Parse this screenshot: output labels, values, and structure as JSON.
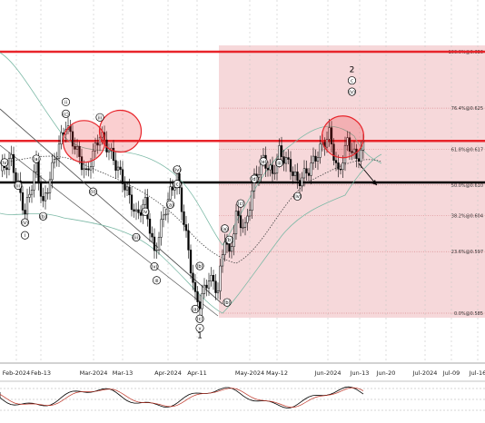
{
  "chart_data": {
    "type": "candlestick",
    "grid": true,
    "x_axis_labels": [
      "Feb-2024",
      "Feb-13",
      "Mar-2024",
      "Mar-13",
      "Apr-2024",
      "Apr-11",
      "May-2024",
      "May-12",
      "Jun-2024",
      "Jun-13",
      "Jun-20",
      "Jul-2024",
      "Jul-09",
      "Jul-16"
    ],
    "fib_levels": [
      {
        "label": "100.0%@0.636",
        "price": 0.636
      },
      {
        "label": "76.4%@0.625",
        "price": 0.625
      },
      {
        "label": "61.8%@0.617",
        "price": 0.617
      },
      {
        "label": "50.0%@0.610",
        "price": 0.61
      },
      {
        "label": "38.2%@0.604",
        "price": 0.604
      },
      {
        "label": "23.6%@0.597",
        "price": 0.597
      },
      {
        "label": "0.0%@0.585",
        "price": 0.585
      }
    ],
    "horizontal_lines": [
      {
        "price": 0.636,
        "color": "#e8242a",
        "style": "resistance"
      },
      {
        "price": 0.6186,
        "color": "#e8242a",
        "style": "resistance"
      },
      {
        "price": 0.6105,
        "color": "#000000",
        "style": "support"
      }
    ],
    "wave_labels": [
      {
        "text": "(iv)",
        "day": 2,
        "price": 0.6144
      },
      {
        "text": "(a)",
        "day": 16,
        "price": 0.6151
      },
      {
        "text": "ii",
        "day": 29,
        "price": 0.6262
      },
      {
        "text": "(c)",
        "day": 29,
        "price": 0.6239
      },
      {
        "text": "(iii)",
        "day": 8,
        "price": 0.6099
      },
      {
        "text": "(b)",
        "day": 19,
        "price": 0.6039
      },
      {
        "text": "(v)",
        "day": 11,
        "price": 0.6027
      },
      {
        "text": "i",
        "day": 11,
        "price": 0.6002
      },
      {
        "text": "iii",
        "day": 44,
        "price": 0.6232
      },
      {
        "text": "(ii)",
        "day": 41,
        "price": 0.6087
      },
      {
        "text": "(iv)",
        "day": 64,
        "price": 0.6048
      },
      {
        "text": "(iii)",
        "day": 60,
        "price": 0.5998
      },
      {
        "text": "(iv)",
        "day": 78,
        "price": 0.613
      },
      {
        "text": "(c)",
        "day": 78,
        "price": 0.6102
      },
      {
        "text": "(a)",
        "day": 75,
        "price": 0.6062
      },
      {
        "text": "(v)",
        "day": 68,
        "price": 0.5941
      },
      {
        "text": "iii",
        "day": 69,
        "price": 0.5914
      },
      {
        "text": "(b)",
        "day": 88,
        "price": 0.5942
      },
      {
        "text": "(a)",
        "day": 86,
        "price": 0.5858
      },
      {
        "text": "(c)",
        "day": 88,
        "price": 0.5839
      },
      {
        "text": "v",
        "day": 88,
        "price": 0.5821
      },
      {
        "text": "(a)",
        "day": 99,
        "price": 0.6015
      },
      {
        "text": "(b)",
        "day": 101,
        "price": 0.5993
      },
      {
        "text": "(c)",
        "day": 106,
        "price": 0.6064
      },
      {
        "text": "(d)",
        "day": 112,
        "price": 0.6112
      },
      {
        "text": "(e)",
        "day": 116,
        "price": 0.6146
      },
      {
        "text": "(iii)",
        "day": 123,
        "price": 0.6143
      },
      {
        "text": "(iv)",
        "day": 131,
        "price": 0.6078
      },
      {
        "text": "(b)",
        "day": 100,
        "price": 0.5871
      },
      {
        "text": "(v)",
        "day": 155,
        "price": 0.6282
      },
      {
        "text": "c",
        "day": 155,
        "price": 0.6304
      },
      {
        "text": "2",
        "day": 155,
        "price": 0.6324
      },
      {
        "text": "1",
        "day": 88,
        "price": 0.5805
      }
    ],
    "annotation_circles": [
      {
        "day": 31,
        "price": 0.6185
      },
      {
        "day": 47,
        "price": 0.6205
      },
      {
        "day": 145,
        "price": 0.6194
      }
    ]
  }
}
